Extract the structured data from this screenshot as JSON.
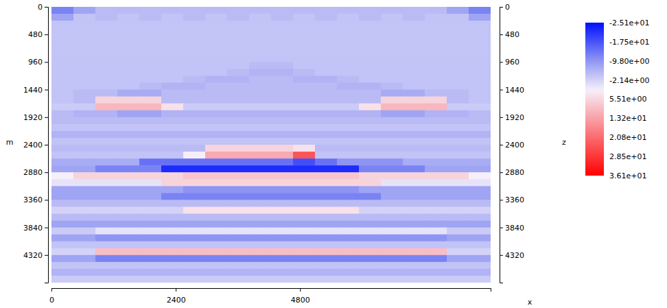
{
  "chart_data": {
    "type": "heatmap",
    "xlabel": "x",
    "ylabel": "m",
    "y2label": "z",
    "xlim": [
      0,
      8480
    ],
    "ylim": [
      0,
      4800
    ],
    "y2lim": [
      0,
      4800
    ],
    "xticks": [
      0,
      2400,
      4800
    ],
    "yticks": [
      0,
      480,
      960,
      1440,
      1920,
      2400,
      2880,
      3360,
      3840,
      4320
    ],
    "y2ticks": [
      0,
      480,
      960,
      1440,
      1920,
      2400,
      2880,
      3360,
      3840,
      4320
    ],
    "x_bins": [
      0,
      424,
      848,
      1272,
      1696,
      2120,
      2544,
      2968,
      3392,
      3816,
      4240,
      4664,
      5088,
      5512,
      5936,
      6360,
      6784,
      7208,
      7632,
      8056,
      8480
    ],
    "y_bins": [
      0,
      120,
      240,
      360,
      480,
      600,
      720,
      840,
      960,
      1080,
      1200,
      1320,
      1440,
      1560,
      1680,
      1800,
      1920,
      2040,
      2160,
      2280,
      2400,
      2520,
      2640,
      2760,
      2880,
      3000,
      3120,
      3240,
      3360,
      3480,
      3600,
      3720,
      3840,
      3960,
      4080,
      4200,
      4320,
      4440,
      4560,
      4680,
      4800
    ],
    "z": [
      [
        -12,
        -8,
        -5,
        -5,
        -5,
        -5,
        -5,
        -5,
        -5,
        -5,
        -5,
        -5,
        -5,
        -5,
        -5,
        -5,
        -5,
        -5,
        -8,
        -12
      ],
      [
        -8,
        -4,
        -5,
        -4,
        -5,
        -4,
        -5,
        -4,
        -5,
        -4,
        -5,
        -4,
        -5,
        -4,
        -5,
        -4,
        -5,
        -4,
        -4,
        -8
      ],
      [
        -4,
        -4,
        -4,
        -4,
        -4,
        -4,
        -4,
        -4,
        -4,
        -4,
        -4,
        -4,
        -4,
        -4,
        -4,
        -4,
        -4,
        -4,
        -4,
        -4
      ],
      [
        -4,
        -4,
        -4,
        -4,
        -4,
        -4,
        -4,
        -4,
        -4,
        -4,
        -4,
        -4,
        -4,
        -4,
        -4,
        -4,
        -4,
        -4,
        -4,
        -4
      ],
      [
        -4,
        -4,
        -4,
        -4,
        -4,
        -4,
        -4,
        -4,
        -4,
        -4,
        -4,
        -4,
        -4,
        -4,
        -4,
        -4,
        -4,
        -4,
        -4,
        -4
      ],
      [
        -4,
        -4,
        -4,
        -4,
        -4,
        -4,
        -4,
        -4,
        -4,
        -4,
        -4,
        -4,
        -4,
        -4,
        -4,
        -4,
        -4,
        -4,
        -4,
        -4
      ],
      [
        -4,
        -4,
        -4,
        -4,
        -4,
        -4,
        -4,
        -4,
        -4,
        -4,
        -4,
        -4,
        -4,
        -4,
        -4,
        -4,
        -4,
        -4,
        -4,
        -4
      ],
      [
        -4,
        -4,
        -4,
        -4,
        -4,
        -4,
        -4,
        -4,
        -4,
        -4,
        -4,
        -4,
        -4,
        -4,
        -4,
        -4,
        -4,
        -4,
        -4,
        -4
      ],
      [
        -4,
        -4,
        -4,
        -4,
        -4,
        -4,
        -4,
        -4,
        -4,
        -5,
        -5,
        -4,
        -4,
        -4,
        -4,
        -4,
        -4,
        -4,
        -4,
        -4
      ],
      [
        -4,
        -4,
        -4,
        -4,
        -4,
        -4,
        -4,
        -4,
        -5,
        -6,
        -6,
        -5,
        -4,
        -4,
        -4,
        -4,
        -4,
        -4,
        -4,
        -4
      ],
      [
        -4,
        -4,
        -4,
        -4,
        -4,
        -4,
        -5,
        -6,
        -6,
        -5,
        -5,
        -6,
        -6,
        -5,
        -4,
        -4,
        -4,
        -4,
        -4,
        -4
      ],
      [
        -4,
        -4,
        -4,
        -4,
        -5,
        -6,
        -6,
        -5,
        -5,
        -5,
        -5,
        -5,
        -5,
        -6,
        -6,
        -5,
        -4,
        -4,
        -4,
        -4
      ],
      [
        -4,
        -5,
        -5,
        -7,
        -7,
        -5,
        -5,
        -5,
        -5,
        -5,
        -5,
        -5,
        -5,
        -5,
        -5,
        -7,
        -7,
        -5,
        -5,
        -4
      ],
      [
        -4,
        -5,
        6,
        6,
        6,
        -5,
        -5,
        -5,
        -5,
        -5,
        -5,
        -5,
        -5,
        -5,
        -5,
        6,
        6,
        6,
        -5,
        -4
      ],
      [
        -3,
        -3,
        10,
        10,
        10,
        4,
        -3,
        -3,
        -3,
        -3,
        -3,
        -3,
        -3,
        -3,
        4,
        10,
        10,
        10,
        -3,
        -3
      ],
      [
        -5,
        -6,
        -6,
        -8,
        -8,
        -6,
        -6,
        -6,
        -6,
        -6,
        -6,
        -6,
        -6,
        -6,
        -6,
        -8,
        -8,
        -6,
        -6,
        -5
      ],
      [
        -5,
        -5,
        -5,
        -5,
        -5,
        -5,
        -5,
        -5,
        -5,
        -5,
        -5,
        -5,
        -5,
        -5,
        -5,
        -5,
        -5,
        -5,
        -5,
        -5
      ],
      [
        -4,
        -4,
        -4,
        -4,
        -4,
        -4,
        -4,
        -4,
        -4,
        -4,
        -4,
        -4,
        -4,
        -4,
        -4,
        -4,
        -4,
        -4,
        -4,
        -4
      ],
      [
        -6,
        -6,
        -6,
        -6,
        -6,
        -6,
        -6,
        -6,
        -6,
        -6,
        -6,
        -6,
        -6,
        -6,
        -6,
        -6,
        -6,
        -6,
        -6,
        -6
      ],
      [
        -4,
        -4,
        -4,
        -4,
        -4,
        -4,
        -4,
        -4,
        -4,
        -4,
        -4,
        -4,
        -4,
        -4,
        -4,
        -4,
        -4,
        -4,
        -4,
        -4
      ],
      [
        -5,
        -5,
        -5,
        -5,
        -5,
        -5,
        -5,
        6,
        6,
        6,
        6,
        4,
        -5,
        -5,
        -5,
        -5,
        -5,
        -5,
        -5,
        -5
      ],
      [
        -4,
        -4,
        -4,
        -4,
        -4,
        -4,
        2,
        12,
        12,
        12,
        12,
        24,
        -4,
        -4,
        -4,
        -4,
        -4,
        -4,
        -4,
        -4
      ],
      [
        -7,
        -7,
        -7,
        -7,
        -14,
        -14,
        -14,
        -14,
        -14,
        -14,
        -14,
        -18,
        -14,
        -10,
        -10,
        -10,
        -7,
        -7,
        -7,
        -7
      ],
      [
        -8,
        -8,
        -12,
        -12,
        -12,
        -22,
        -22,
        -22,
        -22,
        -22,
        -22,
        -22,
        -22,
        -22,
        -12,
        -12,
        -12,
        -8,
        -8,
        -8
      ],
      [
        2,
        6,
        6,
        6,
        6,
        6,
        8,
        8,
        8,
        8,
        8,
        8,
        8,
        8,
        6,
        6,
        6,
        6,
        6,
        2
      ],
      [
        0,
        0,
        0,
        0,
        0,
        6,
        6,
        6,
        6,
        6,
        6,
        6,
        6,
        6,
        6,
        0,
        0,
        0,
        0,
        0
      ],
      [
        -8,
        -8,
        -8,
        -8,
        -8,
        -8,
        -10,
        -10,
        -10,
        -10,
        -10,
        -10,
        -10,
        -10,
        -8,
        -8,
        -8,
        -8,
        -8,
        -8
      ],
      [
        -8,
        -8,
        -8,
        -8,
        -8,
        -12,
        -12,
        -12,
        -12,
        -12,
        -12,
        -12,
        -12,
        -12,
        -12,
        -8,
        -8,
        -8,
        -8,
        -8
      ],
      [
        -5,
        -5,
        -5,
        -5,
        -5,
        -5,
        -5,
        -5,
        -5,
        -5,
        -5,
        -5,
        -5,
        -5,
        -5,
        -5,
        -5,
        -5,
        -5,
        -5
      ],
      [
        -2,
        -2,
        -2,
        -2,
        -2,
        -2,
        4,
        4,
        4,
        4,
        4,
        4,
        4,
        4,
        -2,
        -2,
        -2,
        -2,
        -2,
        -2
      ],
      [
        -5,
        -5,
        -5,
        -5,
        -5,
        -5,
        -5,
        -5,
        -5,
        -5,
        -5,
        -5,
        -5,
        -5,
        -5,
        -5,
        -5,
        -5,
        -5,
        -5
      ],
      [
        -8,
        -8,
        -8,
        -8,
        -8,
        -8,
        -8,
        -8,
        -8,
        -8,
        -8,
        -8,
        -8,
        -8,
        -8,
        -8,
        -8,
        -8,
        -8,
        -8
      ],
      [
        -3,
        -3,
        0,
        0,
        0,
        0,
        0,
        0,
        0,
        0,
        0,
        0,
        0,
        0,
        0,
        0,
        0,
        0,
        -3,
        -3
      ],
      [
        -8,
        -8,
        -10,
        -10,
        -10,
        -10,
        -10,
        -10,
        -10,
        -10,
        -10,
        -10,
        -10,
        -10,
        -10,
        -10,
        -10,
        -10,
        -8,
        -8
      ],
      [
        -4,
        -4,
        -4,
        -4,
        -4,
        -4,
        -4,
        -4,
        -4,
        -4,
        -4,
        -4,
        -4,
        -4,
        -4,
        -4,
        -4,
        -4,
        -4,
        -4
      ],
      [
        -2,
        -2,
        9,
        9,
        9,
        9,
        9,
        9,
        9,
        9,
        9,
        9,
        9,
        9,
        9,
        9,
        9,
        9,
        -2,
        -2
      ],
      [
        -8,
        -8,
        -12,
        -12,
        -12,
        -12,
        -12,
        -12,
        -12,
        -12,
        -12,
        -12,
        -12,
        -12,
        -12,
        -12,
        -12,
        -12,
        -8,
        -8
      ],
      [
        -4,
        -4,
        -4,
        -4,
        -4,
        -4,
        -4,
        -4,
        -4,
        -4,
        -4,
        -4,
        -4,
        -4,
        -4,
        -4,
        -4,
        -4,
        -4,
        -4
      ],
      [
        -6,
        -6,
        -6,
        -6,
        -6,
        -6,
        -6,
        -6,
        -6,
        -6,
        -6,
        -6,
        -6,
        -6,
        -6,
        -6,
        -6,
        -6,
        -6,
        -6
      ],
      [
        -3,
        -3,
        -3,
        -3,
        -3,
        -3,
        -3,
        -3,
        -3,
        -3,
        -3,
        -3,
        -3,
        -3,
        -3,
        -3,
        -3,
        -3,
        -3,
        -3
      ]
    ],
    "colorbar": {
      "lim": [
        -25.1,
        36.1
      ],
      "ticks": [
        {
          "value": -25.1,
          "label": "-2.51e+01"
        },
        {
          "value": -17.5,
          "label": "-1.75e+01"
        },
        {
          "value": -9.8,
          "label": "-9.80e+00"
        },
        {
          "value": -2.14,
          "label": "-2.14e+00"
        },
        {
          "value": 5.51,
          "label": "5.51e+00"
        },
        {
          "value": 13.2,
          "label": "1.32e+01"
        },
        {
          "value": 20.8,
          "label": "2.08e+01"
        },
        {
          "value": 28.5,
          "label": "2.85e+01"
        },
        {
          "value": 36.1,
          "label": "3.61e+01"
        }
      ]
    }
  }
}
